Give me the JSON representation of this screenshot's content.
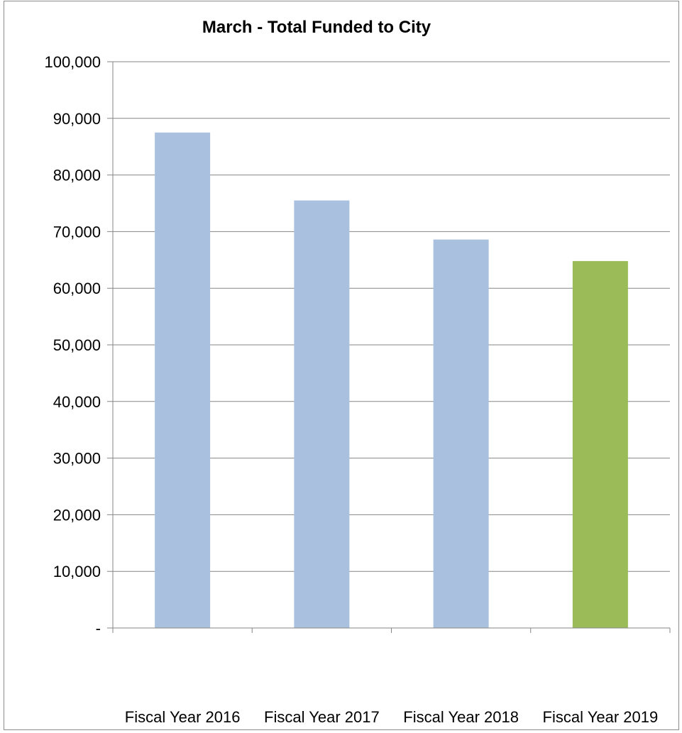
{
  "chart_data": {
    "type": "bar",
    "title": "March - Total Funded to City",
    "xlabel": "",
    "ylabel": "",
    "categories": [
      "Fiscal Year 2016",
      "Fiscal Year 2017",
      "Fiscal Year 2018",
      "Fiscal Year 2019"
    ],
    "values": [
      87500,
      75500,
      68600,
      64800
    ],
    "bar_colors": [
      "#a9c1df",
      "#a9c1df",
      "#a9c1df",
      "#9bbb59"
    ],
    "ylim": [
      0,
      100000
    ],
    "yticks": [
      0,
      10000,
      20000,
      30000,
      40000,
      50000,
      60000,
      70000,
      80000,
      90000,
      100000
    ],
    "ytick_labels": [
      "-",
      "10,000",
      "20,000",
      "30,000",
      "40,000",
      "50,000",
      "60,000",
      "70,000",
      "80,000",
      "90,000",
      "100,000"
    ],
    "grid": true,
    "legend": "none",
    "gridline_color": "#868686"
  }
}
